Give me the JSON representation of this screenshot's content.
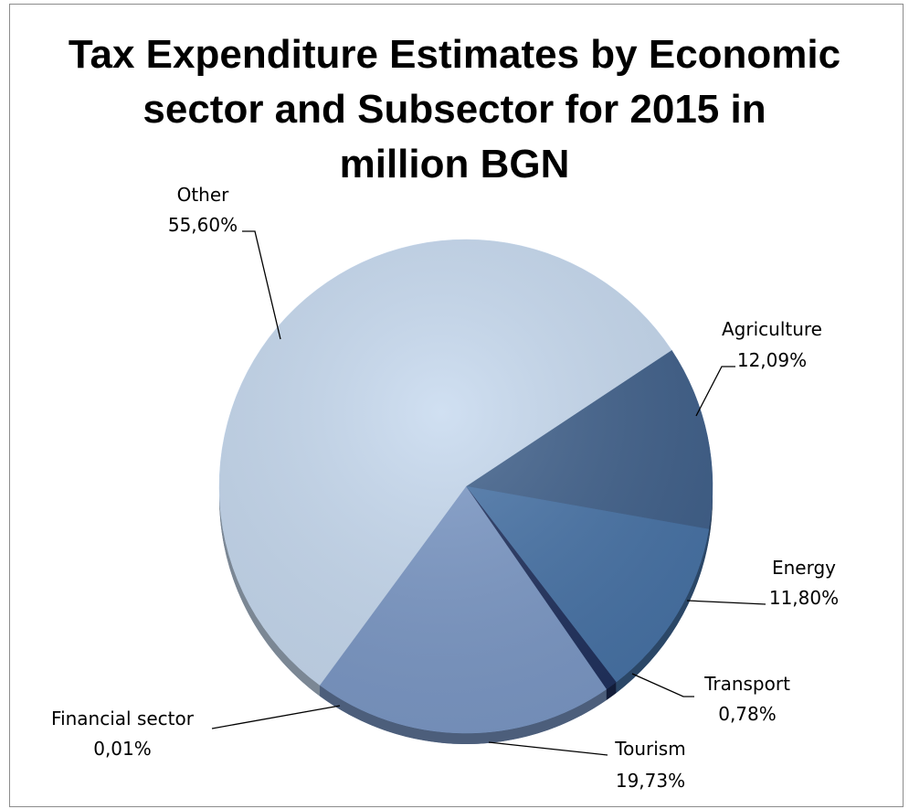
{
  "chart_data": {
    "type": "pie",
    "title": "Tax Expenditure Estimates by Economic sector and Subsector for 2015 in million BGN",
    "title_lines": [
      "Tax Expenditure Estimates by Economic",
      "sector and Subsector for 2015 in",
      "million BGN"
    ],
    "slices": [
      {
        "name": "Agriculture",
        "value": 12.09,
        "label": "12,09%",
        "color": "#3e5f8a"
      },
      {
        "name": "Energy",
        "value": 11.8,
        "label": "11,80%",
        "color": "#4672a6"
      },
      {
        "name": "Transport",
        "value": 0.78,
        "label": "0,78%",
        "color": "#1e2f5c"
      },
      {
        "name": "Tourism",
        "value": 19.73,
        "label": "19,73%",
        "color": "#7b98c6"
      },
      {
        "name": "Financial sector",
        "value": 0.01,
        "label": "0,01%",
        "color": "#9db2d6"
      },
      {
        "name": "Other",
        "value": 55.6,
        "label": "55,60%",
        "color": "#c6d9ef"
      }
    ],
    "style": "3d-pie",
    "legend": "none"
  }
}
